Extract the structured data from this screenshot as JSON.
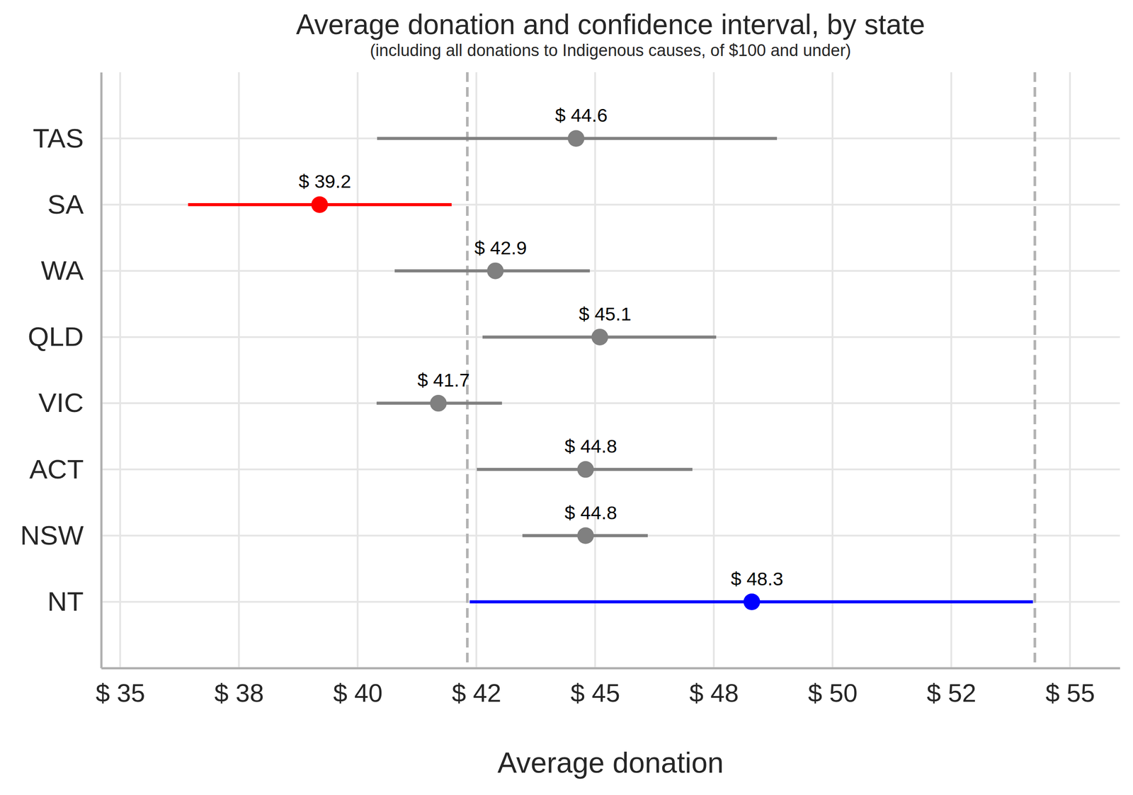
{
  "chart_data": {
    "type": "dot_range",
    "title": "Average donation and confidence interval, by state",
    "subtitle": "(including all donations to Indigenous causes, of $100 and under)",
    "x_label": "Average donation",
    "orientation": "horizontal",
    "categories": [
      "TAS",
      "SA",
      "WA",
      "QLD",
      "VIC",
      "ACT",
      "NSW",
      "NT"
    ],
    "values": [
      44.6,
      39.2,
      42.9,
      45.1,
      41.7,
      44.8,
      44.8,
      48.3
    ],
    "value_labels": [
      "$ 44.6",
      "$ 39.2",
      "$ 42.9",
      "$ 45.1",
      "$ 41.7",
      "$ 44.8",
      "$ 44.8",
      "$ 48.3"
    ],
    "ci_lower": [
      40.41,
      36.43,
      40.78,
      42.63,
      40.4,
      42.51,
      43.47,
      42.36
    ],
    "ci_upper": [
      48.83,
      41.98,
      44.89,
      47.55,
      43.04,
      47.05,
      46.11,
      54.22
    ],
    "colors": [
      "#808080",
      "#ff0000",
      "#808080",
      "#808080",
      "#808080",
      "#808080",
      "#808080",
      "#0000ff"
    ],
    "reference_lines": [
      42.31,
      54.26
    ],
    "xlim": [
      34.6,
      56.05
    ],
    "xticks": [
      {
        "value": 35,
        "label": "$ 35"
      },
      {
        "value": 37.5,
        "label": "$ 38"
      },
      {
        "value": 40,
        "label": "$ 40"
      },
      {
        "value": 42.5,
        "label": "$ 42"
      },
      {
        "value": 45,
        "label": "$ 45"
      },
      {
        "value": 47.5,
        "label": "$ 48"
      },
      {
        "value": 50,
        "label": "$ 50"
      },
      {
        "value": 52.5,
        "label": "$ 52"
      },
      {
        "value": 55,
        "label": "$ 55"
      }
    ],
    "grid": true,
    "data_labels": true
  }
}
